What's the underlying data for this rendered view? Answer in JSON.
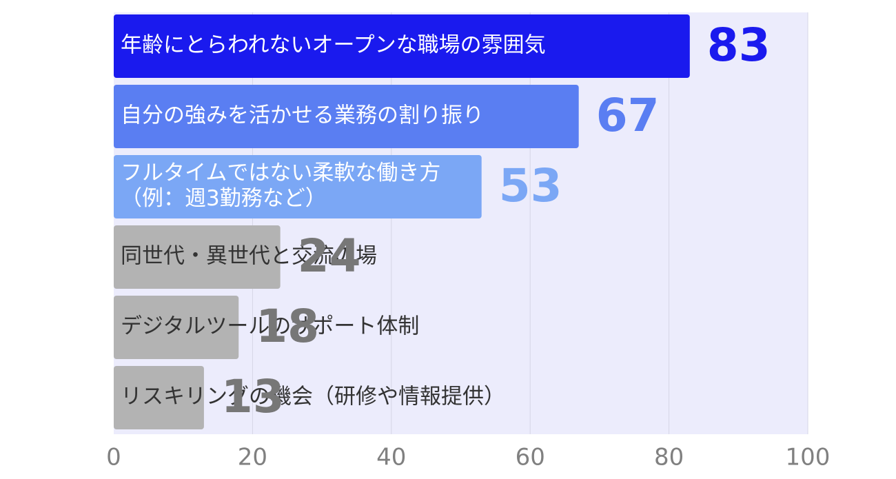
{
  "chart_data": {
    "type": "bar",
    "orientation": "horizontal",
    "title": "",
    "xlabel": "",
    "ylabel": "",
    "xlim": [
      0,
      100
    ],
    "x_ticks": [
      0,
      20,
      40,
      60,
      80,
      100
    ],
    "grid": true,
    "data_labels": true,
    "categories": [
      {
        "lines": [
          "年齢にとらわれないオープンな職場の雰囲気"
        ]
      },
      {
        "lines": [
          "自分の強みを活かせる業務の割り振り"
        ]
      },
      {
        "lines": [
          "フルタイムではない柔軟な働き方",
          "（例：週3勤務など）"
        ]
      },
      {
        "lines": [
          "同世代・異世代と交流の場"
        ]
      },
      {
        "lines": [
          "デジタルツールのサポート体制"
        ]
      },
      {
        "lines": [
          "リスキリングの機会（研修や情報提供）"
        ]
      }
    ],
    "values": [
      83,
      67,
      53,
      24,
      18,
      13
    ],
    "bar_colors": [
      "#1a1aee",
      "#5a7ef2",
      "#7ba7f5",
      "#b3b3b3",
      "#b3b3b3",
      "#b3b3b3"
    ],
    "label_colors": [
      "#ffffff",
      "#ffffff",
      "#ffffff",
      "#333333",
      "#333333",
      "#333333"
    ],
    "value_colors": [
      "#1a1aee",
      "#5a7ef2",
      "#7ba7f5",
      "#777777",
      "#777777",
      "#777777"
    ],
    "plot_background": "#ececfc",
    "grid_color": "#d6d6e6"
  }
}
